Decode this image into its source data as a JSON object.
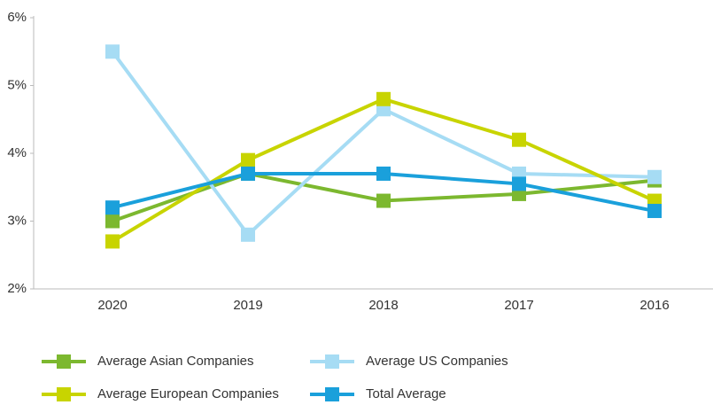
{
  "chart_data": {
    "type": "line",
    "categories": [
      "2020",
      "2019",
      "2018",
      "2017",
      "2016"
    ],
    "series": [
      {
        "name": "Average Asian Companies",
        "color": "#7cb82f",
        "values": [
          3.0,
          3.7,
          3.3,
          3.4,
          3.6
        ]
      },
      {
        "name": "Average US Companies",
        "color": "#a6dcf4",
        "values": [
          5.5,
          2.8,
          4.65,
          3.7,
          3.65
        ]
      },
      {
        "name": "Average European Companies",
        "color": "#c8d400",
        "values": [
          2.7,
          3.9,
          4.8,
          4.2,
          3.3
        ]
      },
      {
        "name": "Total Average",
        "color": "#1aa0db",
        "values": [
          3.2,
          3.7,
          3.7,
          3.55,
          3.15
        ]
      }
    ],
    "ylim": [
      2,
      6
    ],
    "yticks": [
      {
        "value": 2,
        "label": "2%"
      },
      {
        "value": 3,
        "label": "3%"
      },
      {
        "value": 4,
        "label": "4%"
      },
      {
        "value": 5,
        "label": "5%"
      },
      {
        "value": 6,
        "label": "6%"
      }
    ],
    "legend": "bottom"
  }
}
